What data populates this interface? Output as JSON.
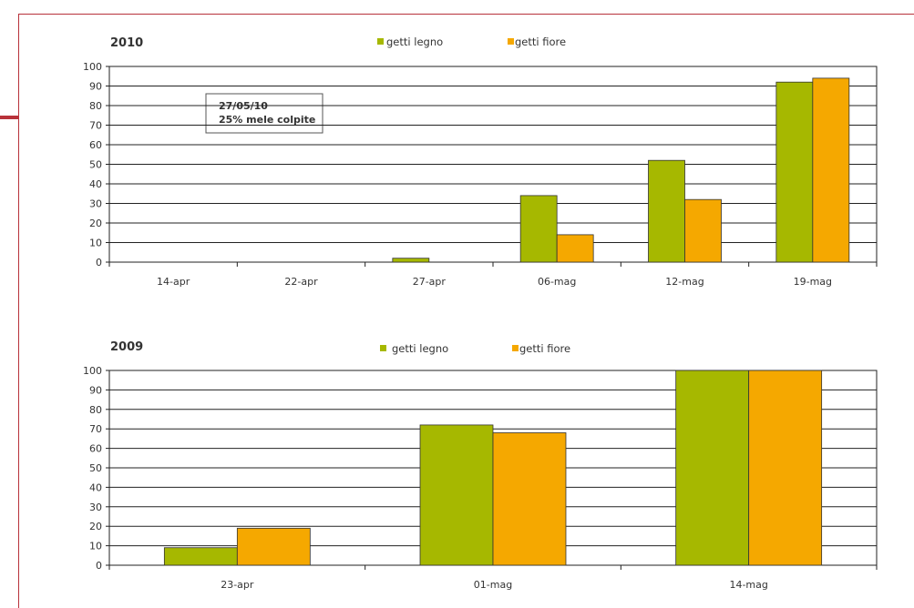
{
  "colors": {
    "getti_legno": "#a6b800",
    "getti_fiore": "#f5a800",
    "frame": "#b8323a"
  },
  "chart_data": [
    {
      "type": "bar",
      "title": "2010",
      "categories": [
        "14-apr",
        "22-apr",
        "27-apr",
        "06-mag",
        "12-mag",
        "19-mag"
      ],
      "series": [
        {
          "name": "getti legno",
          "values": [
            0,
            0,
            2,
            34,
            52,
            92
          ]
        },
        {
          "name": "getti fiore",
          "values": [
            0,
            0,
            0,
            14,
            32,
            94
          ]
        }
      ],
      "ylim": [
        0,
        100
      ],
      "yticks": [
        0,
        10,
        20,
        30,
        40,
        50,
        60,
        70,
        80,
        90,
        100
      ],
      "grid": true,
      "legend": "top-center",
      "annotation": {
        "line1": "27/05/10",
        "line2": "25% mele colpite"
      }
    },
    {
      "type": "bar",
      "title": "2009",
      "categories": [
        "23-apr",
        "01-mag",
        "14-mag"
      ],
      "series": [
        {
          "name": "getti legno",
          "values": [
            9,
            72,
            100
          ]
        },
        {
          "name": "getti fiore",
          "values": [
            19,
            68,
            100
          ]
        }
      ],
      "ylim": [
        0,
        100
      ],
      "yticks": [
        0,
        10,
        20,
        30,
        40,
        50,
        60,
        70,
        80,
        90,
        100
      ],
      "grid": true,
      "legend": "top-center"
    }
  ]
}
